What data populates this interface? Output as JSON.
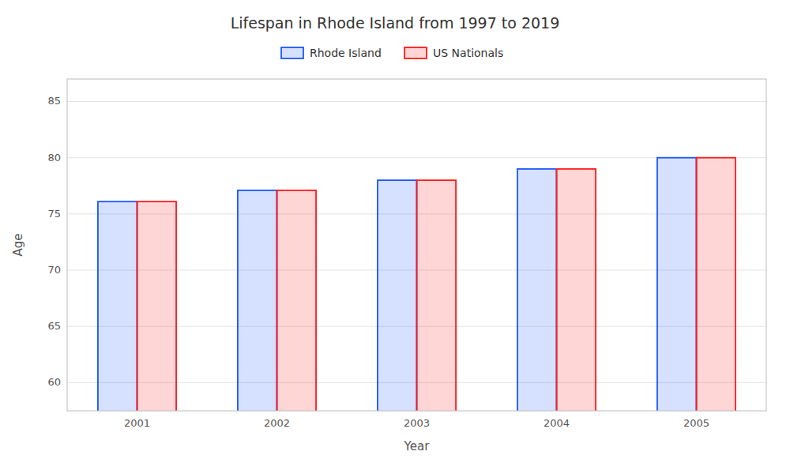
{
  "chart_data": {
    "type": "bar",
    "title": "Lifespan in Rhode Island from 1997 to 2019",
    "xlabel": "Year",
    "ylabel": "Age",
    "categories": [
      "2001",
      "2002",
      "2003",
      "2004",
      "2005"
    ],
    "series": [
      {
        "name": "Rhode Island",
        "color": "#1a56ff",
        "values": [
          76.1,
          77.1,
          78.0,
          79.0,
          80.0
        ]
      },
      {
        "name": "US Nationals",
        "color": "#ff1a1a",
        "values": [
          76.1,
          77.1,
          78.0,
          79.0,
          80.0
        ]
      }
    ],
    "ylim": [
      57.5,
      87
    ],
    "yticks": [
      60,
      65,
      70,
      75,
      80,
      85
    ],
    "grid": true,
    "legend": "top"
  }
}
